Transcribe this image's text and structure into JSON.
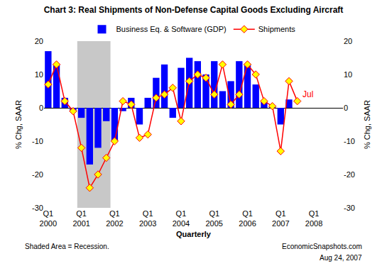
{
  "chart_data": {
    "type": "bar",
    "title": "Chart 3: Real Shipments of Non-Defense Capital Goods Excluding Aircraft",
    "x_label": "Quarterly",
    "y_label": "% Chg, SAAR",
    "y2_label": "% Chg, SAAR",
    "categories": [
      "Q1 2000",
      null,
      null,
      null,
      "Q1 2001",
      null,
      null,
      null,
      "Q1 2002",
      null,
      null,
      null,
      "Q1 2003",
      null,
      null,
      null,
      "Q1 2004",
      null,
      null,
      null,
      "Q1 2005",
      null,
      null,
      null,
      "Q1 2006",
      null,
      null,
      null,
      "Q1 2007",
      null,
      null,
      null,
      "Q1 2008",
      null,
      null,
      null
    ],
    "series": [
      {
        "name": "Business Eq. & Software (GDP)",
        "type": "bar",
        "color": "#0000ff",
        "values": [
          17,
          13,
          3,
          -1,
          -3,
          -17,
          -12,
          -4,
          -10,
          -1,
          3,
          -5,
          3,
          9,
          13,
          -3,
          12,
          15,
          14,
          10,
          14,
          5,
          8,
          14,
          13,
          7,
          2,
          0.5,
          -5,
          2.5,
          null,
          null,
          null,
          null,
          null,
          null
        ]
      },
      {
        "name": "Shipments",
        "type": "line",
        "color": "#ff0000",
        "marker": "diamond",
        "axis": "y2",
        "values": [
          7,
          13,
          2,
          -1,
          -12,
          -24,
          -20,
          -15,
          -10,
          2,
          1,
          -9,
          -8,
          3,
          4,
          6,
          -4,
          8,
          10,
          9,
          4,
          13,
          1,
          4,
          13,
          10,
          2,
          0.5,
          -13,
          8,
          2,
          null,
          null,
          null,
          null,
          null
        ]
      }
    ],
    "ylim": [
      -30,
      20
    ],
    "yticks": [
      -30,
      -20,
      -10,
      0,
      10,
      20
    ],
    "y2lim": [
      -30,
      20
    ],
    "y2ticks": [
      -30,
      -20,
      -10,
      0,
      10,
      20
    ],
    "grid": false,
    "legend": "top",
    "shaded": [
      [
        4,
        7
      ]
    ],
    "annotations": [
      {
        "text": "Jul",
        "series": "Shipments",
        "index": 30
      }
    ],
    "notes": [
      "Shaded Area = Recession."
    ],
    "source": [
      "EconomicSnapshots.com",
      "Aug 24, 2007"
    ]
  }
}
